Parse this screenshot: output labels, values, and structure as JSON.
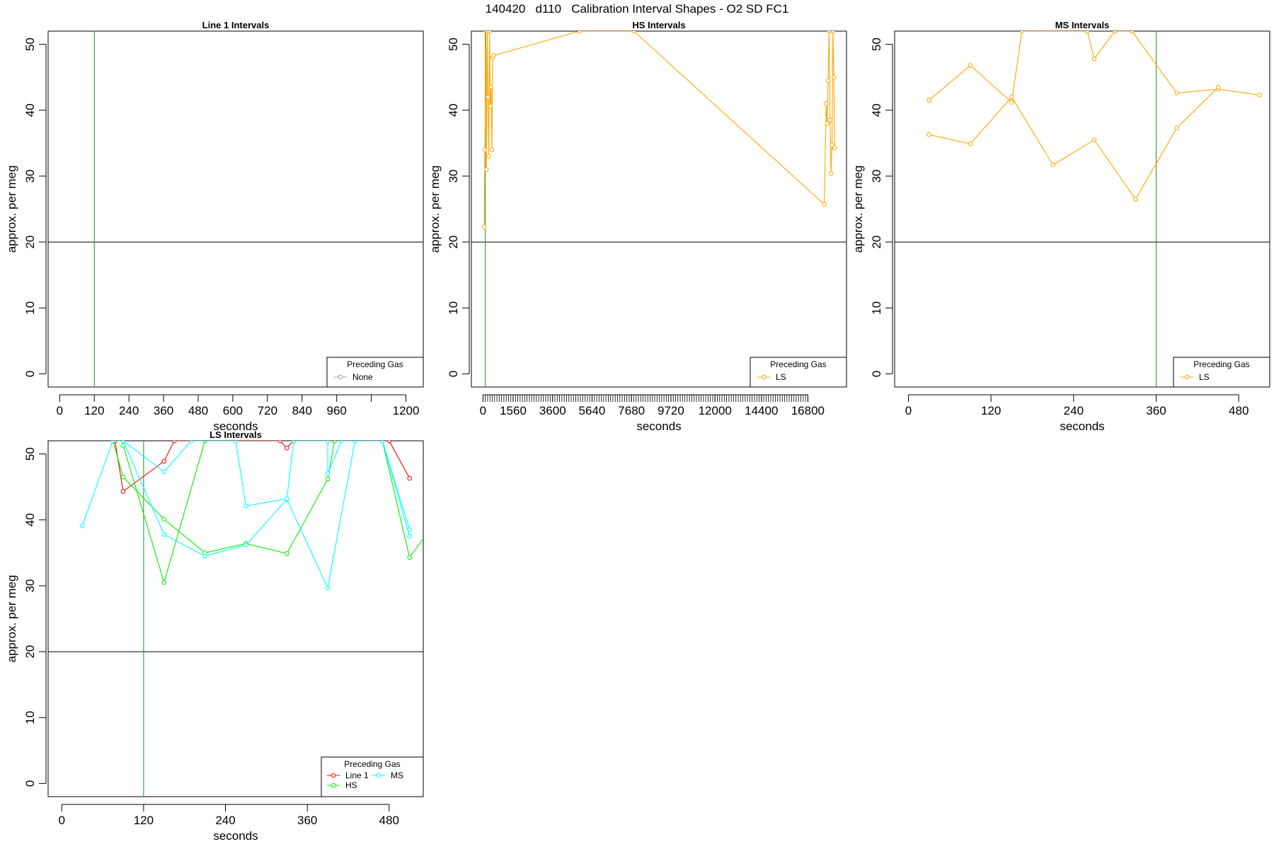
{
  "figure_title": "140420   d110   Calibration Interval Shapes - O2 SD FC1",
  "chart_data": [
    {
      "type": "line",
      "title": "Line 1 Intervals",
      "xlabel": "seconds",
      "ylabel": "approx. per meg",
      "xlim": [
        -40,
        1260
      ],
      "ylim": [
        -2,
        52
      ],
      "xticks": [
        0,
        120,
        240,
        360,
        480,
        600,
        720,
        840,
        960,
        1080,
        1200
      ],
      "xtick_labels": [
        "0",
        "120",
        "240",
        "360",
        "480",
        "600",
        "720",
        "840",
        "960",
        "",
        "1200"
      ],
      "yticks": [
        0,
        10,
        20,
        30,
        40,
        50
      ],
      "hline": 20,
      "vline": 120,
      "legend": {
        "title": "Preceding Gas",
        "position": "bottom-right"
      },
      "series": [
        {
          "name": "None",
          "color": "#9e9e9e",
          "points": []
        }
      ]
    },
    {
      "type": "line",
      "title": "HS Intervals",
      "xlabel": "seconds",
      "ylabel": "approx. per meg",
      "xlim": [
        -600,
        18800
      ],
      "ylim": [
        -2,
        52
      ],
      "xticks": [
        0,
        1560,
        3600,
        5640,
        7680,
        9720,
        12000,
        14400,
        16800
      ],
      "xtick_labels": [
        "0",
        "1560",
        "3600",
        "5640",
        "7680",
        "9720",
        "12000",
        "14400",
        "16800"
      ],
      "minor_tick_step": 120,
      "yticks": [
        0,
        10,
        20,
        30,
        40,
        50
      ],
      "hline": 20,
      "vline": 120,
      "legend": {
        "title": "Preceding Gas",
        "position": "bottom-right"
      },
      "series": [
        {
          "name": "LS",
          "color": "#ffa500",
          "points": [
            [
              60,
              22.3
            ],
            [
              100,
              34
            ],
            [
              150,
              52
            ],
            [
              180,
              31
            ],
            [
              220,
              52
            ],
            [
              260,
              42
            ],
            [
              300,
              33
            ],
            [
              340,
              52
            ],
            [
              380,
              40.6
            ],
            [
              420,
              43.5
            ],
            [
              460,
              34
            ],
            [
              500,
              48
            ],
            [
              560,
              48.3
            ],
            [
              5000,
              52
            ],
            [
              7800,
              52
            ],
            [
              17650,
              25.7
            ],
            [
              17750,
              41
            ],
            [
              17800,
              38
            ],
            [
              17850,
              44.5
            ],
            [
              17900,
              52
            ],
            [
              17950,
              38.5
            ],
            [
              18000,
              30.4
            ],
            [
              18050,
              34.7
            ],
            [
              18100,
              52
            ],
            [
              18150,
              45
            ],
            [
              18180,
              34.3
            ]
          ]
        }
      ]
    },
    {
      "type": "line",
      "title": "MS Intervals",
      "xlabel": "seconds",
      "ylabel": "approx. per meg",
      "xlim": [
        -20,
        525
      ],
      "ylim": [
        -2,
        52
      ],
      "xticks": [
        0,
        120,
        240,
        360,
        480
      ],
      "xtick_labels": [
        "0",
        "120",
        "240",
        "360",
        "480"
      ],
      "yticks": [
        0,
        10,
        20,
        30,
        40,
        50
      ],
      "hline": 20,
      "vline": 360,
      "legend": {
        "title": "Preceding Gas",
        "position": "bottom-right"
      },
      "series": [
        {
          "name": "LS",
          "color": "#ffa500",
          "points": [
            [
              30,
              41.5
            ],
            [
              90,
              46.8
            ],
            [
              150,
              41.2
            ],
            [
              165,
              52
            ],
            [
              260,
              52
            ],
            [
              270,
              47.8
            ],
            [
              300,
              52
            ],
            [
              325,
              52
            ],
            [
              390,
              42.6
            ],
            [
              450,
              43.2
            ],
            [
              510,
              42.3
            ]
          ]
        },
        {
          "name": "",
          "color": "#ffa500",
          "points": [
            [
              30,
              36.3
            ],
            [
              90,
              34.9
            ],
            [
              150,
              42
            ],
            [
              210,
              31.7
            ],
            [
              270,
              35.5
            ],
            [
              330,
              26.5
            ],
            [
              390,
              37.3
            ],
            [
              450,
              43.5
            ]
          ]
        }
      ]
    },
    {
      "type": "line",
      "title": "LS Intervals",
      "xlabel": "seconds",
      "ylabel": "approx. per meg",
      "xlim": [
        -20,
        530
      ],
      "ylim": [
        -2,
        52
      ],
      "xticks": [
        0,
        120,
        240,
        360,
        480
      ],
      "xtick_labels": [
        "0",
        "120",
        "240",
        "360",
        "480"
      ],
      "yticks": [
        0,
        10,
        20,
        30,
        40,
        50
      ],
      "hline": 20,
      "vline": 120,
      "legend": {
        "title": "Preceding Gas",
        "position": "bottom-right"
      },
      "series": [
        {
          "name": "Line 1",
          "color": "#ff0000",
          "points": [
            [
              78,
              52
            ],
            [
              90,
              44.3
            ],
            [
              150,
              48.9
            ],
            [
              165,
              52
            ],
            [
              320,
              52
            ],
            [
              330,
              50.9
            ],
            [
              340,
              52
            ],
            [
              480,
              52
            ],
            [
              510,
              46.3
            ]
          ]
        },
        {
          "name": "HS",
          "color": "#00ee00",
          "points": [
            [
              75,
              52
            ],
            [
              90,
              46.5
            ],
            [
              150,
              40.1
            ],
            [
              210,
              35
            ],
            [
              270,
              36.4
            ],
            [
              330,
              34.9
            ],
            [
              390,
              46.2
            ],
            [
              400,
              52
            ],
            [
              470,
              52
            ],
            [
              510,
              34.3
            ],
            [
              570,
              42.7
            ]
          ]
        },
        {
          "name": "",
          "color": "#00ee00",
          "points": [
            [
              90,
              51.3
            ],
            [
              150,
              30.5
            ],
            [
              210,
              52
            ]
          ]
        },
        {
          "name": "MS",
          "color": "#00ffff",
          "points": [
            [
              30,
              39.1
            ],
            [
              75,
              52
            ],
            [
              90,
              52
            ],
            [
              150,
              37.8
            ],
            [
              210,
              34.5
            ],
            [
              270,
              36.2
            ],
            [
              330,
              43.1
            ],
            [
              390,
              29.7
            ],
            [
              430,
              52
            ],
            [
              470,
              52
            ],
            [
              510,
              37.5
            ]
          ]
        },
        {
          "name": "",
          "color": "#00ffff",
          "points": [
            [
              90,
              52
            ],
            [
              150,
              47.3
            ],
            [
              190,
              52
            ],
            [
              255,
              52
            ],
            [
              270,
              42.1
            ],
            [
              330,
              43.2
            ],
            [
              340,
              52
            ],
            [
              390,
              52
            ],
            [
              390,
              47
            ],
            [
              410,
              52
            ],
            [
              470,
              52
            ],
            [
              510,
              38.5
            ]
          ]
        }
      ]
    }
  ]
}
